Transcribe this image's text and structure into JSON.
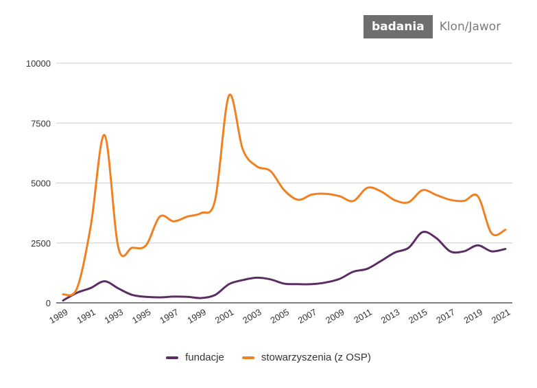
{
  "brand": {
    "label_box": "badania",
    "label_name": "Klon/Jawor"
  },
  "chart_data": {
    "type": "line",
    "x": [
      1989,
      1990,
      1991,
      1992,
      1993,
      1994,
      1995,
      1996,
      1997,
      1998,
      1999,
      2000,
      2001,
      2002,
      2003,
      2004,
      2005,
      2006,
      2007,
      2008,
      2009,
      2010,
      2011,
      2012,
      2013,
      2014,
      2015,
      2016,
      2017,
      2018,
      2019,
      2020,
      2021
    ],
    "xticks": [
      "1989",
      "1991",
      "1993",
      "1995",
      "1997",
      "1999",
      "2001",
      "2003",
      "2005",
      "2007",
      "2009",
      "2011",
      "2013",
      "2015",
      "2017",
      "2019",
      "2021"
    ],
    "yticks": [
      "0",
      "2500",
      "5000",
      "7500",
      "10000"
    ],
    "ylim": [
      0,
      10000
    ],
    "grid": true,
    "legend_position": "bottom",
    "series": [
      {
        "name": "fundacje",
        "color": "#5a2d63",
        "values": [
          100,
          420,
          620,
          900,
          600,
          330,
          250,
          230,
          260,
          250,
          200,
          330,
          780,
          950,
          1050,
          980,
          800,
          780,
          780,
          850,
          1000,
          1300,
          1420,
          1750,
          2100,
          2300,
          2950,
          2700,
          2150,
          2150,
          2400,
          2150,
          2250
        ]
      },
      {
        "name": "stowarzyszenia (z OSP)",
        "color": "#f08020",
        "values": [
          350,
          600,
          3200,
          7000,
          2300,
          2300,
          2400,
          3600,
          3400,
          3600,
          3750,
          4300,
          8650,
          6400,
          5700,
          5500,
          4700,
          4300,
          4520,
          4550,
          4450,
          4250,
          4800,
          4650,
          4280,
          4200,
          4700,
          4500,
          4300,
          4250,
          4450,
          2900,
          3050
        ]
      }
    ]
  }
}
